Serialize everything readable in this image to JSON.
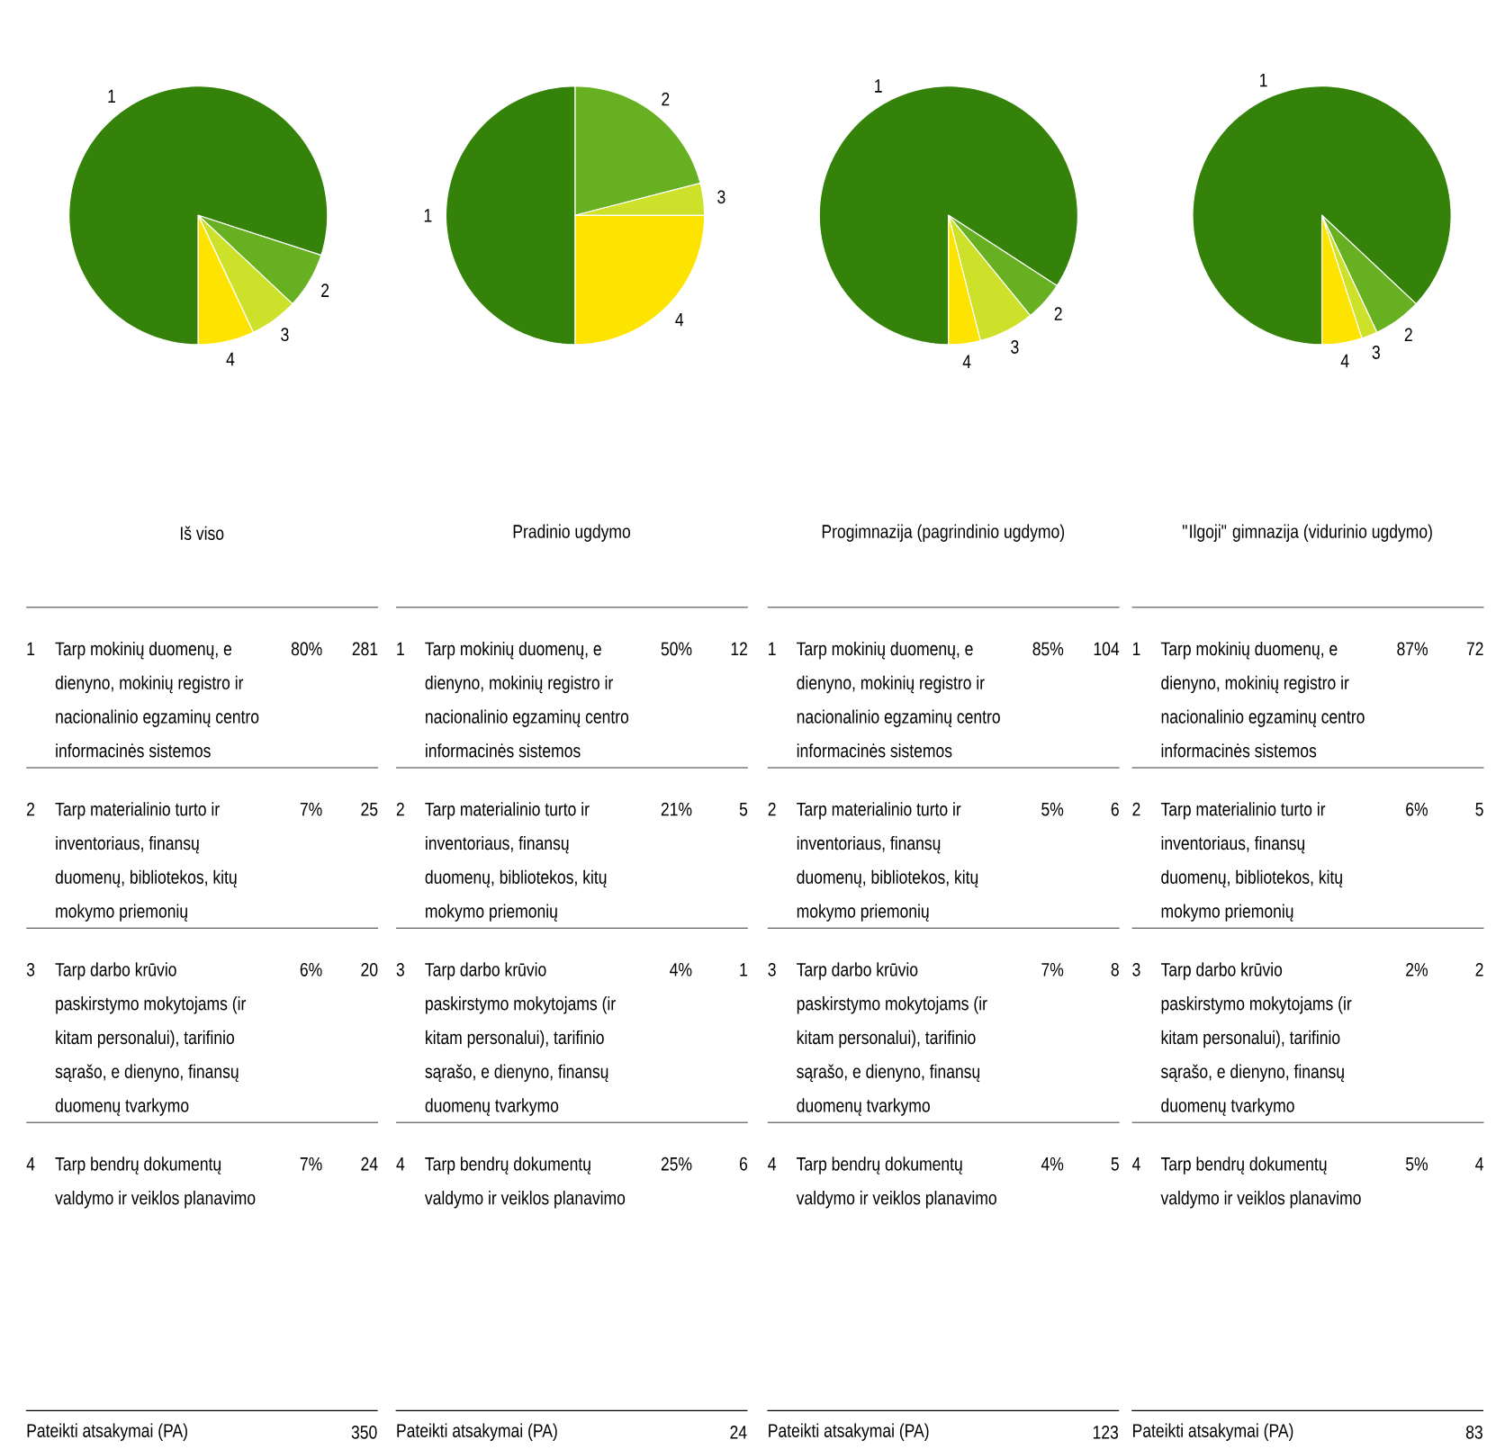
{
  "chart_data": [
    {
      "type": "pie",
      "title": "Iš viso",
      "categories": [
        "1",
        "2",
        "3",
        "4"
      ],
      "values": [
        80,
        7,
        6,
        7
      ],
      "colors": [
        "#348209",
        "#66b021",
        "#cde12a",
        "#fde400"
      ],
      "totals": [
        "350"
      ],
      "annotations": [
        "Tarp mokinių duomenų, e dienyno, mokinių registro ir nacionalinio egzaminų centro informacinės sistemos",
        "Tarp materialinio turto ir inventoriaus, finansų duomenų, bibliotekos, kitų mokymo priemonių",
        "Tarp darbo krūvio paskirstymo mokytojams (ir kitam personalui), tarifinio sąrašo, e dienyno, finansų duomenų tvarkymo",
        "Tarp bendrų dokumentų valdymo ir veiklos planavimo",
        "80%",
        "7%",
        "6%",
        "7%",
        "281",
        "25",
        "20",
        "24",
        "Pateikti atsakymai (PA)"
      ]
    },
    {
      "type": "pie",
      "title": "Pradinio ugdymo",
      "categories": [
        "1",
        "2",
        "3",
        "4"
      ],
      "values": [
        50,
        21,
        4,
        25
      ],
      "colors": [
        "#348209",
        "#66b021",
        "#cde12a",
        "#fde400"
      ],
      "totals": [
        "24"
      ],
      "annotations": [
        "Tarp mokinių duomenų, e dienyno, mokinių registro ir nacionalinio egzaminų centro informacinės sistemos",
        "Tarp materialinio turto ir inventoriaus, finansų duomenų, bibliotekos, kitų mokymo priemonių",
        "Tarp darbo krūvio paskirstymo mokytojams (ir kitam personalui), tarifinio sąrašo, e dienyno, finansų duomenų tvarkymo",
        "Tarp bendrų dokumentų valdymo ir veiklos planavimo",
        "50%",
        "21%",
        "4%",
        "25%",
        "12",
        "5",
        "1",
        "6",
        "Pateikti atsakymai (PA)"
      ]
    },
    {
      "type": "pie",
      "title": "Progimnazija (pagrindinio ugdymo)",
      "categories": [
        "1",
        "2",
        "3",
        "4"
      ],
      "values": [
        85,
        5,
        7,
        4
      ],
      "colors": [
        "#348209",
        "#66b021",
        "#cde12a",
        "#fde400"
      ],
      "totals": [
        "123"
      ],
      "annotations": [
        "Tarp mokinių duomenų, e dienyno, mokinių registro ir nacionalinio egzaminų centro informacinės sistemos",
        "Tarp materialinio turto ir inventoriaus, finansų duomenų, bibliotekos, kitų mokymo priemonių",
        "Tarp darbo krūvio paskirstymo mokytojams (ir kitam personalui), tarifinio sąrašo, e dienyno, finansų duomenų tvarkymo",
        "Tarp bendrų dokumentų valdymo ir veiklos planavimo",
        "85%",
        "5%",
        "7%",
        "4%",
        "104",
        "6",
        "8",
        "5",
        "Pateikti atsakymai (PA)"
      ]
    },
    {
      "type": "pie",
      "title": "\"Ilgoji\" gimnazija (vidurinio ugdymo)",
      "categories": [
        "1",
        "2",
        "3",
        "4"
      ],
      "values": [
        87,
        6,
        2,
        5
      ],
      "colors": [
        "#348209",
        "#66b021",
        "#cde12a",
        "#fde400"
      ],
      "totals": [
        "83"
      ],
      "annotations": [
        "Tarp mokinių duomenų, e dienyno, mokinių registro ir nacionalinio egzaminų centro informacinės sistemos",
        "Tarp materialinio turto ir inventoriaus, finansų duomenų, bibliotekos, kitų mokymo priemonių",
        "Tarp darbo krūvio paskirstymo mokytojams (ir kitam personalui), tarifinio sąrašo, e dienyno, finansų duomenų tvarkymo",
        "Tarp bendrų dokumentų valdymo ir veiklos planavimo",
        "87%",
        "6%",
        "2%",
        "5%",
        "72",
        "5",
        "2",
        "4",
        "Pateikti atsakymai (PA)"
      ]
    }
  ]
}
